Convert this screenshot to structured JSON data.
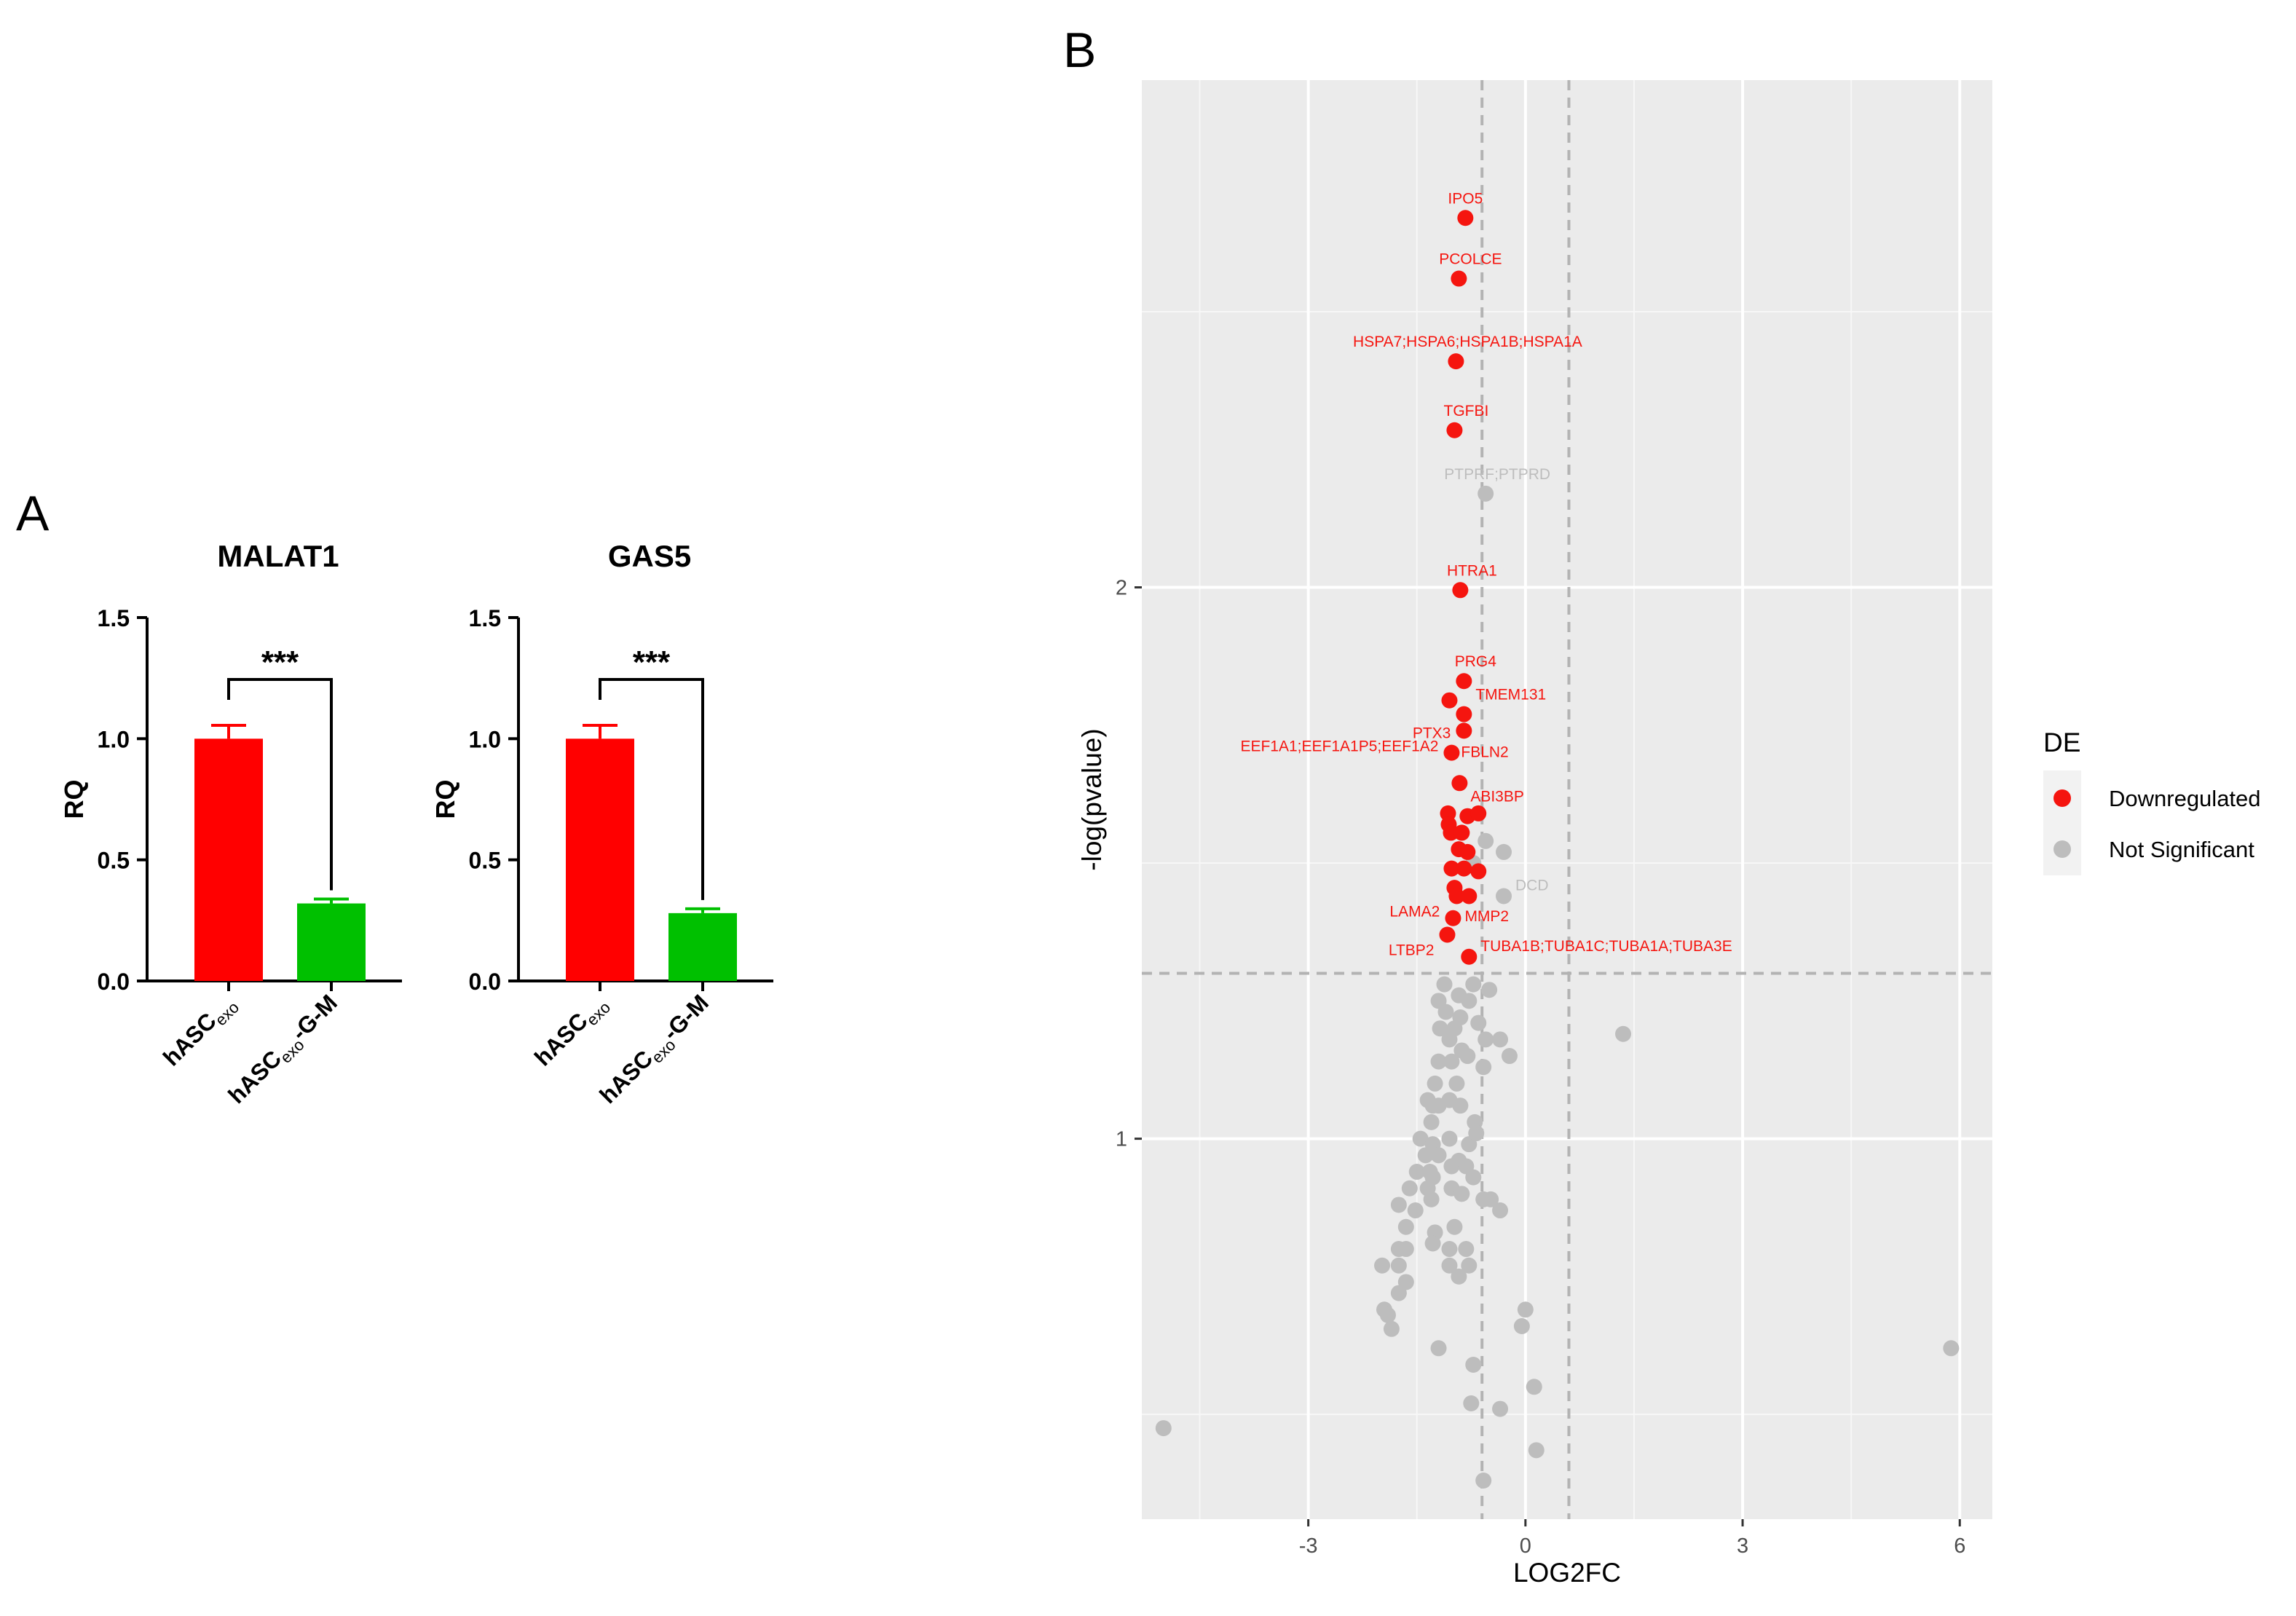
{
  "panel_a": {
    "label": "A",
    "charts": [
      {
        "title": "MALAT1",
        "ylabel": "RQ",
        "yticks": [
          "0.0",
          "0.5",
          "1.0",
          "1.5"
        ],
        "ylim": [
          0,
          1.5
        ],
        "significance": "***",
        "bars": [
          {
            "name": "hASC",
            "sub": "exo",
            "suffix": "",
            "value": 1.0,
            "error": 0.055,
            "color": "#ff0000"
          },
          {
            "name": "hASC",
            "sub": "exo",
            "suffix": "-G-M",
            "value": 0.32,
            "error": 0.018,
            "color": "#00c000"
          }
        ]
      },
      {
        "title": "GAS5",
        "ylabel": "RQ",
        "yticks": [
          "0.0",
          "0.5",
          "1.0",
          "1.5"
        ],
        "ylim": [
          0,
          1.5
        ],
        "significance": "***",
        "bars": [
          {
            "name": "hASC",
            "sub": "exo",
            "suffix": "",
            "value": 1.0,
            "error": 0.055,
            "color": "#ff0000"
          },
          {
            "name": "hASC",
            "sub": "exo",
            "suffix": "-G-M",
            "value": 0.28,
            "error": 0.018,
            "color": "#00c000"
          }
        ]
      }
    ]
  },
  "panel_b": {
    "label": "B",
    "xlabel": "LOG2FC",
    "ylabel": "-log(pvalue)",
    "xticks": [
      "-3",
      "0",
      "3",
      "6"
    ],
    "yticks": [
      "1",
      "2"
    ],
    "xlim": [
      -5.3,
      6.45
    ],
    "ylim": [
      0.31,
      2.92
    ],
    "fc_threshold": 0.6,
    "p_threshold": 1.3,
    "legend": {
      "title": "DE",
      "items": [
        {
          "label": "Downregulated",
          "color": "#f5150f"
        },
        {
          "label": "Not Significant",
          "color": "#bdbdbd"
        }
      ]
    }
  },
  "chart_data": [
    {
      "type": "bar",
      "title": "MALAT1",
      "categories": [
        "hASCexo",
        "hASCexo-G-M"
      ],
      "values": [
        1.0,
        0.32
      ],
      "errors": [
        0.055,
        0.018
      ],
      "xlabel": "",
      "ylabel": "RQ",
      "ylim": [
        0,
        1.5
      ]
    },
    {
      "type": "bar",
      "title": "GAS5",
      "categories": [
        "hASCexo",
        "hASCexo-G-M"
      ],
      "values": [
        1.0,
        0.28
      ],
      "errors": [
        0.055,
        0.018
      ],
      "xlabel": "",
      "ylabel": "RQ",
      "ylim": [
        0,
        1.5
      ]
    },
    {
      "type": "scatter",
      "title": "",
      "xlabel": "LOG2FC",
      "ylabel": "-log(pvalue)",
      "xlim": [
        -5.3,
        6.45
      ],
      "ylim": [
        0.31,
        2.92
      ],
      "series": [
        {
          "name": "Downregulated",
          "points": [
            {
              "x": -0.83,
              "y": 2.67,
              "label": "IPO5"
            },
            {
              "x": -0.92,
              "y": 2.56,
              "label": "PCOLCE"
            },
            {
              "x": -0.96,
              "y": 2.41,
              "label": "HSPA7;HSPA6;HSPA1B;HSPA1A"
            },
            {
              "x": -0.98,
              "y": 2.285,
              "label": "TGFBI"
            },
            {
              "x": -0.9,
              "y": 1.995,
              "label": "HTRA1"
            },
            {
              "x": -0.85,
              "y": 1.83,
              "label": "PRG4"
            },
            {
              "x": -1.05,
              "y": 1.795,
              "label": ""
            },
            {
              "x": -0.85,
              "y": 1.77,
              "label": "TMEM131"
            },
            {
              "x": -0.85,
              "y": 1.74,
              "label": "PTX3"
            },
            {
              "x": -1.02,
              "y": 1.7,
              "label": "EEF1A1;EEF1A1P5;EEF1A2"
            },
            {
              "x": -0.91,
              "y": 1.645,
              "label": "FBLN2"
            },
            {
              "x": -1.07,
              "y": 1.59,
              "label": ""
            },
            {
              "x": -1.06,
              "y": 1.57,
              "label": ""
            },
            {
              "x": -0.8,
              "y": 1.585,
              "label": "ABI3BP"
            },
            {
              "x": -0.65,
              "y": 1.59,
              "label": ""
            },
            {
              "x": -1.03,
              "y": 1.555,
              "label": ""
            },
            {
              "x": -0.88,
              "y": 1.555,
              "label": ""
            },
            {
              "x": -0.92,
              "y": 1.525,
              "label": ""
            },
            {
              "x": -0.8,
              "y": 1.52,
              "label": ""
            },
            {
              "x": -1.02,
              "y": 1.49,
              "label": ""
            },
            {
              "x": -0.85,
              "y": 1.49,
              "label": ""
            },
            {
              "x": -0.65,
              "y": 1.485,
              "label": ""
            },
            {
              "x": -0.98,
              "y": 1.455,
              "label": ""
            },
            {
              "x": -0.95,
              "y": 1.44,
              "label": ""
            },
            {
              "x": -0.78,
              "y": 1.44,
              "label": "LAMA2"
            },
            {
              "x": -1.0,
              "y": 1.4,
              "label": "MMP2"
            },
            {
              "x": -1.08,
              "y": 1.37,
              "label": "LTBP2"
            },
            {
              "x": -0.78,
              "y": 1.33,
              "label": "TUBA1B;TUBA1C;TUBA1A;TUBA3E"
            }
          ]
        },
        {
          "name": "Not Significant",
          "points": [
            {
              "x": -0.55,
              "y": 2.17,
              "label": "PTPRF;PTPRD"
            },
            {
              "x": -0.3,
              "y": 1.44,
              "label": "DCD"
            },
            {
              "x": -0.55,
              "y": 1.54,
              "label": ""
            },
            {
              "x": -0.3,
              "y": 1.52,
              "label": ""
            },
            {
              "x": -0.72,
              "y": 1.5,
              "label": ""
            },
            {
              "x": -1.12,
              "y": 1.28,
              "label": ""
            },
            {
              "x": -0.72,
              "y": 1.28,
              "label": ""
            },
            {
              "x": -0.5,
              "y": 1.27,
              "label": ""
            },
            {
              "x": -0.92,
              "y": 1.26,
              "label": ""
            },
            {
              "x": -1.2,
              "y": 1.25,
              "label": ""
            },
            {
              "x": -0.78,
              "y": 1.25,
              "label": ""
            },
            {
              "x": -1.1,
              "y": 1.23,
              "label": ""
            },
            {
              "x": -0.9,
              "y": 1.22,
              "label": ""
            },
            {
              "x": -0.65,
              "y": 1.21,
              "label": ""
            },
            {
              "x": -1.18,
              "y": 1.2,
              "label": ""
            },
            {
              "x": -0.98,
              "y": 1.2,
              "label": ""
            },
            {
              "x": -1.05,
              "y": 1.18,
              "label": ""
            },
            {
              "x": -0.88,
              "y": 1.16,
              "label": ""
            },
            {
              "x": -0.55,
              "y": 1.18,
              "label": ""
            },
            {
              "x": -0.35,
              "y": 1.18,
              "label": ""
            },
            {
              "x": 1.35,
              "y": 1.19,
              "label": ""
            },
            {
              "x": -1.2,
              "y": 1.14,
              "label": ""
            },
            {
              "x": -1.02,
              "y": 1.14,
              "label": ""
            },
            {
              "x": -0.8,
              "y": 1.15,
              "label": ""
            },
            {
              "x": -0.58,
              "y": 1.13,
              "label": ""
            },
            {
              "x": -0.22,
              "y": 1.15,
              "label": ""
            },
            {
              "x": -0.95,
              "y": 1.1,
              "label": ""
            },
            {
              "x": -1.25,
              "y": 1.1,
              "label": ""
            },
            {
              "x": -1.35,
              "y": 1.07,
              "label": ""
            },
            {
              "x": -1.28,
              "y": 1.06,
              "label": ""
            },
            {
              "x": -1.2,
              "y": 1.06,
              "label": ""
            },
            {
              "x": -1.05,
              "y": 1.07,
              "label": ""
            },
            {
              "x": -0.9,
              "y": 1.06,
              "label": ""
            },
            {
              "x": -1.3,
              "y": 1.03,
              "label": ""
            },
            {
              "x": -0.7,
              "y": 1.03,
              "label": ""
            },
            {
              "x": -1.45,
              "y": 1.0,
              "label": ""
            },
            {
              "x": -1.28,
              "y": 0.99,
              "label": ""
            },
            {
              "x": -1.05,
              "y": 1.0,
              "label": ""
            },
            {
              "x": -0.78,
              "y": 0.99,
              "label": ""
            },
            {
              "x": -0.68,
              "y": 1.01,
              "label": ""
            },
            {
              "x": -1.38,
              "y": 0.97,
              "label": ""
            },
            {
              "x": -1.2,
              "y": 0.97,
              "label": ""
            },
            {
              "x": -0.92,
              "y": 0.96,
              "label": ""
            },
            {
              "x": -1.5,
              "y": 0.94,
              "label": ""
            },
            {
              "x": -1.32,
              "y": 0.94,
              "label": ""
            },
            {
              "x": -1.02,
              "y": 0.95,
              "label": ""
            },
            {
              "x": -0.82,
              "y": 0.95,
              "label": ""
            },
            {
              "x": -1.28,
              "y": 0.93,
              "label": ""
            },
            {
              "x": -0.72,
              "y": 0.93,
              "label": ""
            },
            {
              "x": -1.6,
              "y": 0.91,
              "label": ""
            },
            {
              "x": -1.35,
              "y": 0.91,
              "label": ""
            },
            {
              "x": -1.02,
              "y": 0.91,
              "label": ""
            },
            {
              "x": -1.3,
              "y": 0.89,
              "label": ""
            },
            {
              "x": -0.88,
              "y": 0.9,
              "label": ""
            },
            {
              "x": -0.58,
              "y": 0.89,
              "label": ""
            },
            {
              "x": -0.48,
              "y": 0.89,
              "label": ""
            },
            {
              "x": -1.75,
              "y": 0.88,
              "label": ""
            },
            {
              "x": -1.52,
              "y": 0.87,
              "label": ""
            },
            {
              "x": -0.35,
              "y": 0.87,
              "label": ""
            },
            {
              "x": -1.65,
              "y": 0.84,
              "label": ""
            },
            {
              "x": -1.25,
              "y": 0.83,
              "label": ""
            },
            {
              "x": -0.98,
              "y": 0.84,
              "label": ""
            },
            {
              "x": -1.75,
              "y": 0.8,
              "label": ""
            },
            {
              "x": -1.65,
              "y": 0.8,
              "label": ""
            },
            {
              "x": -1.28,
              "y": 0.81,
              "label": ""
            },
            {
              "x": -1.05,
              "y": 0.8,
              "label": ""
            },
            {
              "x": -0.82,
              "y": 0.8,
              "label": ""
            },
            {
              "x": -1.98,
              "y": 0.77,
              "label": ""
            },
            {
              "x": -1.75,
              "y": 0.77,
              "label": ""
            },
            {
              "x": -1.05,
              "y": 0.77,
              "label": ""
            },
            {
              "x": -0.78,
              "y": 0.77,
              "label": ""
            },
            {
              "x": -1.65,
              "y": 0.74,
              "label": ""
            },
            {
              "x": -0.92,
              "y": 0.75,
              "label": ""
            },
            {
              "x": -1.75,
              "y": 0.72,
              "label": ""
            },
            {
              "x": -1.95,
              "y": 0.69,
              "label": ""
            },
            {
              "x": -1.9,
              "y": 0.68,
              "label": ""
            },
            {
              "x": 0.0,
              "y": 0.69,
              "label": ""
            },
            {
              "x": -1.85,
              "y": 0.655,
              "label": ""
            },
            {
              "x": -0.05,
              "y": 0.66,
              "label": ""
            },
            {
              "x": -1.2,
              "y": 0.62,
              "label": ""
            },
            {
              "x": 5.88,
              "y": 0.62,
              "label": ""
            },
            {
              "x": -0.72,
              "y": 0.59,
              "label": ""
            },
            {
              "x": 0.12,
              "y": 0.55,
              "label": ""
            },
            {
              "x": -0.75,
              "y": 0.52,
              "label": ""
            },
            {
              "x": -0.35,
              "y": 0.51,
              "label": ""
            },
            {
              "x": -5.0,
              "y": 0.475,
              "label": ""
            },
            {
              "x": 0.15,
              "y": 0.435,
              "label": ""
            },
            {
              "x": -0.58,
              "y": 0.38,
              "label": ""
            }
          ]
        }
      ]
    }
  ]
}
